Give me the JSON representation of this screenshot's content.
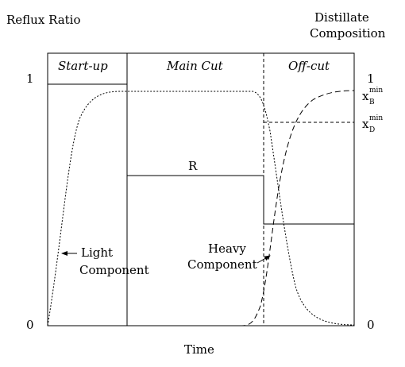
{
  "axes": {
    "left_title": "Reflux Ratio",
    "right_title_line1": "Distillate",
    "right_title_line2": "Composition",
    "left_max": "1",
    "left_min": "0",
    "right_max": "1",
    "right_min": "0",
    "x_label": "Time"
  },
  "phases": {
    "startup": "Start-up",
    "main_cut": "Main Cut",
    "off_cut": "Off-cut"
  },
  "labels": {
    "reflux": "R",
    "light_line1": "Light",
    "light_line2": "Component",
    "heavy_line1": "Heavy",
    "heavy_line2": "Component",
    "xb_base": "x",
    "xb_sub": "B",
    "xb_sup": "min",
    "xd_base": "x",
    "xd_sub": "D",
    "xd_sup": "min"
  },
  "style": {
    "ink": "#000000",
    "background": "#ffffff"
  }
}
